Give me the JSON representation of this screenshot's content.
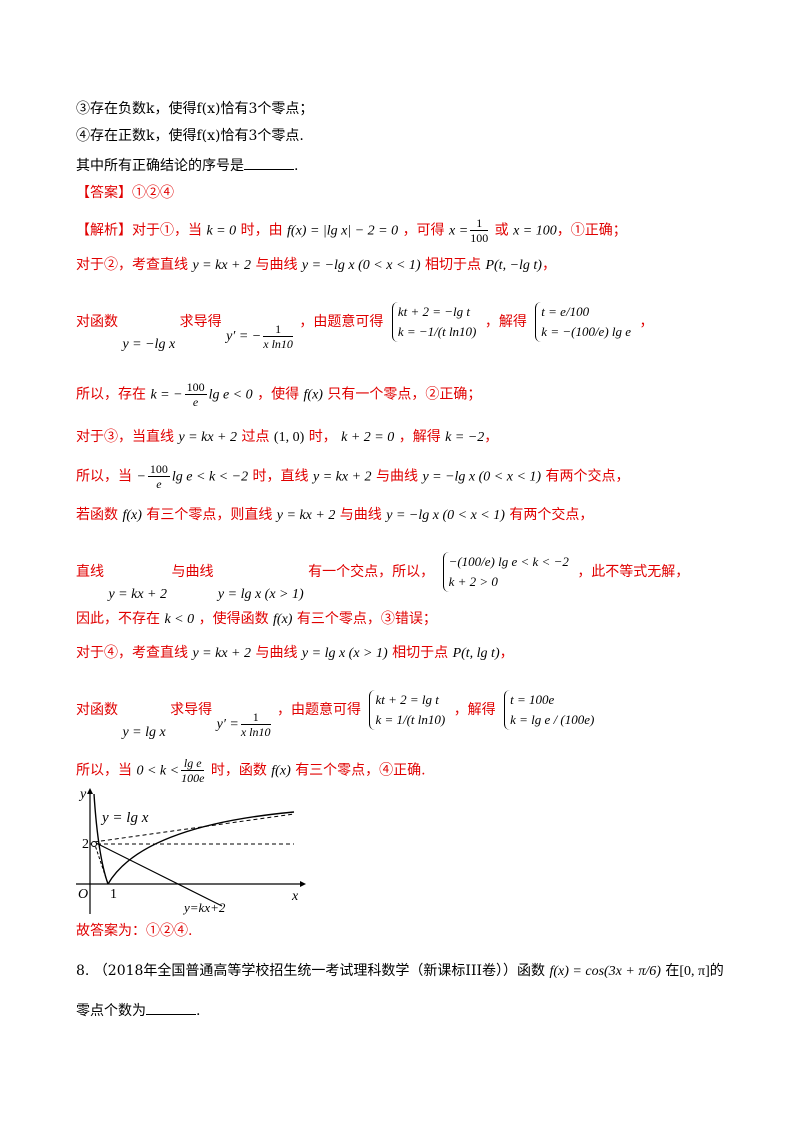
{
  "lines": {
    "l1": "③存在负数k，使得f(x)恰有3个零点；",
    "l2": "④存在正数k，使得f(x)恰有3个零点.",
    "l3": "其中所有正确结论的序号是",
    "l3_end": ".",
    "answer_tag": "【答案】",
    "answer": "①②④",
    "analysis_tag": "【解析】",
    "a1_a": "对于①，当",
    "a1_b": "k = 0",
    "a1_c": "时，由",
    "a1_d": "f(x) = |lg x| − 2 = 0",
    "a1_e": "，可得",
    "a1_f": "或",
    "a1_g": "x = 100",
    "a1_h": "，①正确；",
    "a2_a": "对于②，考查直线",
    "a2_b": "y = kx + 2",
    "a2_c": "与曲线",
    "a2_d": "y = −lg x (0 < x < 1)",
    "a2_e": "相切于点",
    "a2_f": "P(t, −lg t)",
    "a2_g": "，",
    "a3_a": "对函数",
    "a3_b": "y = −lg x",
    "a3_c": "求导得",
    "a3_d": "y′ = −",
    "a3_e": "，由题意可得",
    "a3_f": "，解得",
    "a3_g": "，",
    "a4_a": "所以，存在",
    "a4_b": "k = −",
    "a4_c": "lg e < 0",
    "a4_d": "，使得",
    "a4_e": "f(x)",
    "a4_f": "只有一个零点，②正确；",
    "a5_a": "对于③，当直线",
    "a5_b": "y = kx + 2",
    "a5_c": "过点",
    "a5_d": "(1, 0)",
    "a5_e": "时，",
    "a5_f": "k + 2 = 0",
    "a5_g": "，解得",
    "a5_h": "k = −2",
    "a5_i": "，",
    "a6_a": "所以，当",
    "a6_b": "−",
    "a6_c": "lg e < k < −2",
    "a6_d": "时，直线",
    "a6_e": "y = kx + 2",
    "a6_f": "与曲线",
    "a6_g": "y = −lg x (0 < x < 1)",
    "a6_h": "有两个交点，",
    "a7_a": "若函数",
    "a7_b": "f(x)",
    "a7_c": "有三个零点，则直线",
    "a7_d": "y = kx + 2",
    "a7_e": "与曲线",
    "a7_f": "y = −lg x (0 < x < 1)",
    "a7_g": "有两个交点，",
    "a8_a": "直线",
    "a8_b": "y = kx + 2",
    "a8_c": "与曲线",
    "a8_d": "y = lg x (x > 1)",
    "a8_e": "有一个交点，所以，",
    "a8_f": "，此不等式无解，",
    "a9_a": "因此，不存在",
    "a9_b": "k < 0",
    "a9_c": "，使得函数",
    "a9_d": "f(x)",
    "a9_e": "有三个零点，③错误；",
    "a10_a": "对于④，考查直线",
    "a10_b": "y = kx + 2",
    "a10_c": "与曲线",
    "a10_d": "y = lg x (x > 1)",
    "a10_e": "相切于点",
    "a10_f": "P(t, lg t)",
    "a10_g": "，",
    "a11_a": "对函数",
    "a11_b": "y = lg x",
    "a11_c": "求导得",
    "a11_d": "y′ =",
    "a11_e": "，由题意可得",
    "a11_f": "，解得",
    "a12_a": "所以，当",
    "a12_b": "0 < k <",
    "a12_c": "时，函数",
    "a12_d": "f(x)",
    "a12_e": "有三个零点，④正确.",
    "conclusion": "故答案为：①②④.",
    "q8_a": "8.  （2018年全国普通高等学校招生统一考试理科数学（新课标III卷））函数",
    "q8_b": "f(x) = cos(3x + π/6)",
    "q8_c": "在",
    "q8_d": "[0, π]",
    "q8_e": "的",
    "q8_f": "零点个数为",
    "q8_g": "."
  },
  "fracs": {
    "one": "1",
    "hundred": "100",
    "e": "e",
    "hundred_lge": "100",
    "xln10": "x ln10",
    "tln10": "t ln10",
    "lge": "lg e",
    "hundred_e": "100e"
  },
  "systems": {
    "s1": [
      "kt + 2 = −lg t",
      "k = −1/(t ln10)"
    ],
    "s2": [
      "t = e/100",
      "k = −(100/e) lg e"
    ],
    "s3": [
      "−(100/e) lg e < k < −2",
      "k + 2 > 0"
    ],
    "s4": [
      "kt + 2 = lg t",
      "k = 1/(t ln10)"
    ],
    "s5": [
      "t = 100e",
      "k = lg e / (100e)"
    ]
  },
  "graph": {
    "y_axis": "y",
    "x_axis": "x",
    "origin": "O",
    "tick_2": "2",
    "tick_1": "1",
    "curve_label": "y = lg x",
    "line_label": "y=kx+2"
  }
}
